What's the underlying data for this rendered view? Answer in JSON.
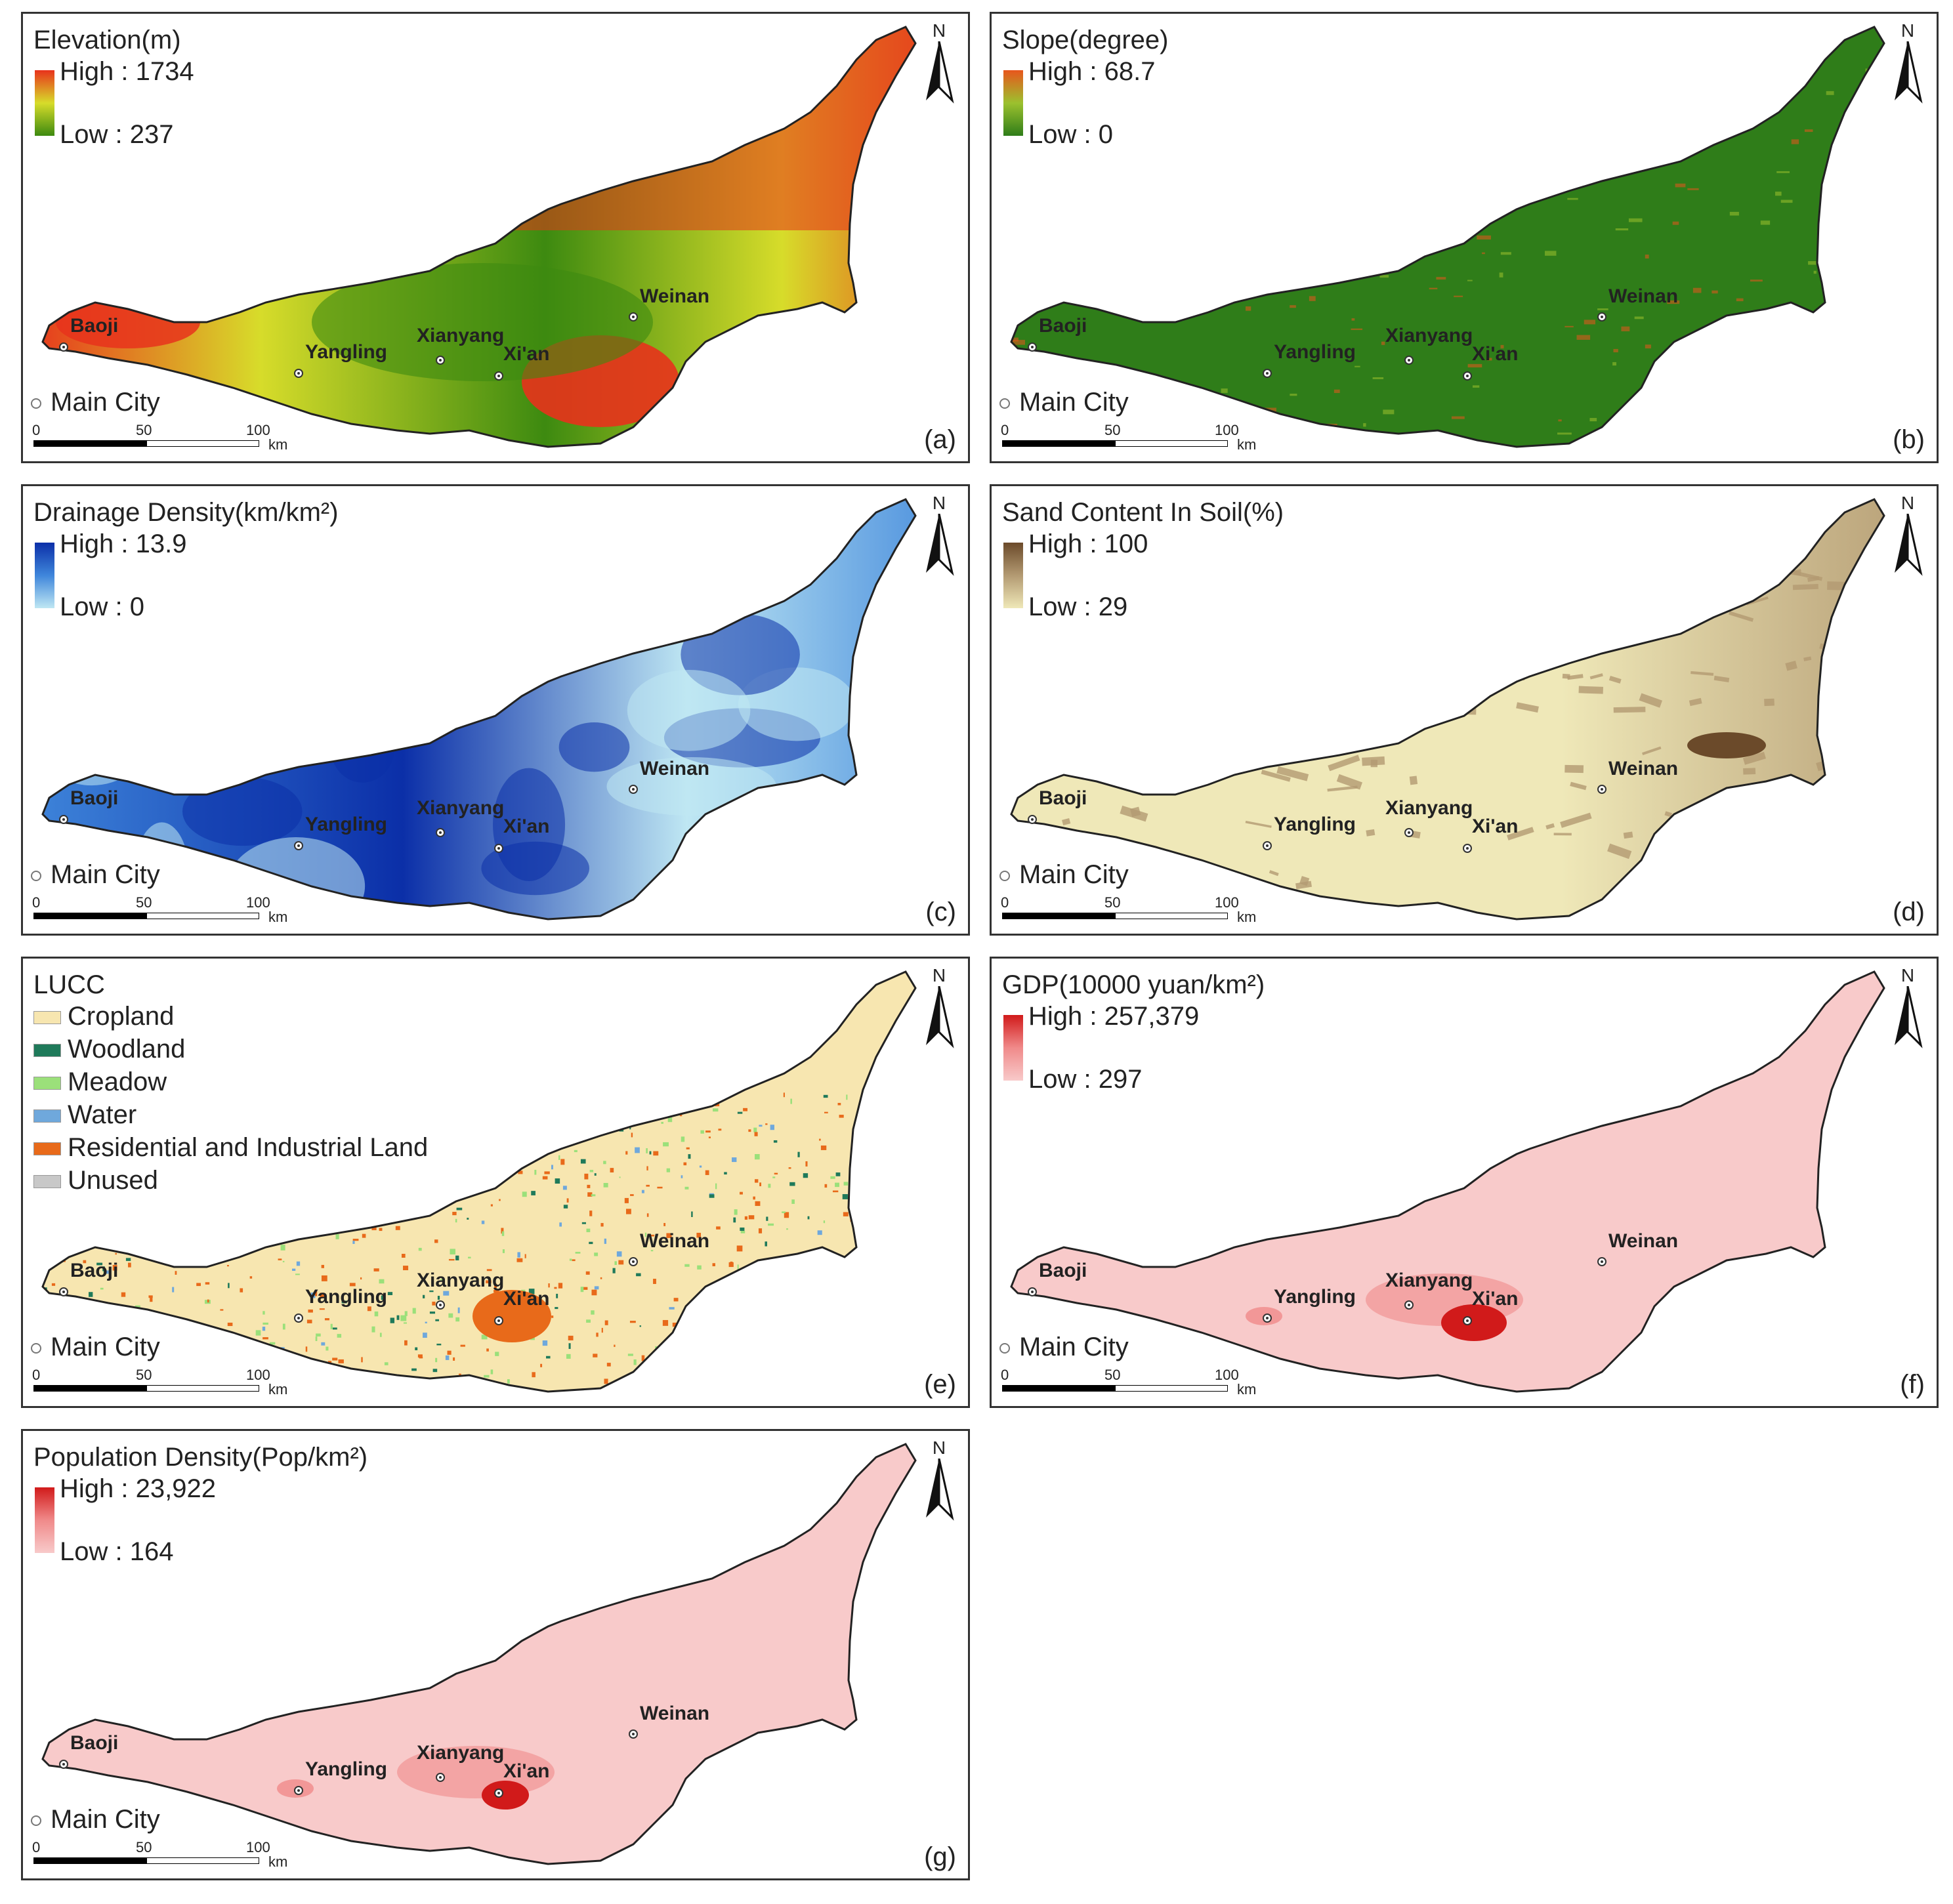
{
  "figure": {
    "main_city_label": "Main City",
    "scale": {
      "zero": "0",
      "mid": "50",
      "end": "100",
      "unit": "km"
    },
    "north": "N",
    "cities": [
      "Baoji",
      "Yangling",
      "Xianyang",
      "Xi'an",
      "Weinan"
    ]
  },
  "panels": {
    "a": {
      "label": "(a)",
      "title": "Elevation(m)",
      "high": "High : 1734",
      "low": "Low : 237",
      "colors": {
        "high": "#e8321c",
        "mid": "#d7dc2a",
        "low": "#3d8a10"
      }
    },
    "b": {
      "label": "(b)",
      "title": "Slope(degree)",
      "high": "High : 68.7",
      "low": "Low : 0",
      "colors": {
        "high": "#e8561c",
        "mid": "#9cc12e",
        "low": "#2f7d19"
      }
    },
    "c": {
      "label": "(c)",
      "title": "Drainage Density(km/km²)",
      "high": "High : 13.9",
      "low": "Low : 0",
      "colors": {
        "high": "#0b2fa8",
        "mid": "#3f86db",
        "low": "#bfe7f3"
      }
    },
    "d": {
      "label": "(d)",
      "title": "Sand Content In Soil(%)",
      "high": "High : 100",
      "low": "Low : 29",
      "colors": {
        "high": "#6b4a2a",
        "mid": "#b39a72",
        "low": "#efe8b8"
      }
    },
    "e": {
      "label": "(e)",
      "title": "LUCC",
      "classes": [
        {
          "name": "Cropland",
          "color": "#f7e6b0"
        },
        {
          "name": "Woodland",
          "color": "#1f7a5a"
        },
        {
          "name": "Meadow",
          "color": "#9be07a"
        },
        {
          "name": "Water",
          "color": "#6fa8dc"
        },
        {
          "name": "Residential and Industrial Land",
          "color": "#e86a1a"
        },
        {
          "name": "Unused",
          "color": "#c8c8c8"
        }
      ]
    },
    "f": {
      "label": "(f)",
      "title": "GDP(10000 yuan/km²)",
      "high": "High : 257,379",
      "low": "Low : 297",
      "colors": {
        "high": "#d11a1a",
        "mid": "#f08a8a",
        "low": "#f8caca"
      }
    },
    "g": {
      "label": "(g)",
      "title": "Population Density(Pop/km²)",
      "high": "High : 23,922",
      "low": "Low : 164",
      "colors": {
        "high": "#d11a1a",
        "mid": "#f08a8a",
        "low": "#f8caca"
      }
    }
  }
}
